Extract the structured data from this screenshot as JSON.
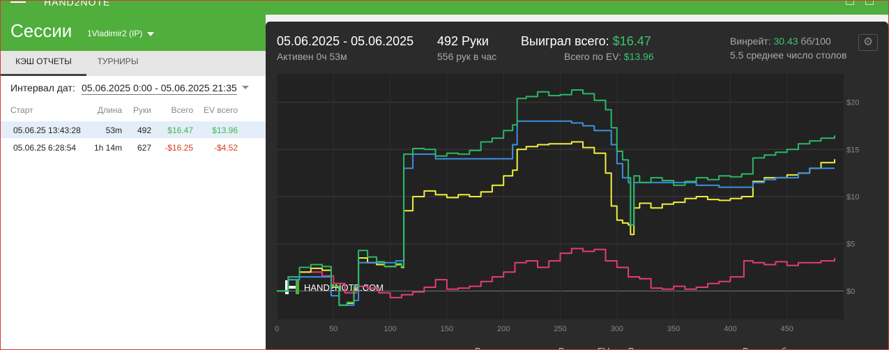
{
  "app": {
    "name": "HAND2NOTE"
  },
  "header": {
    "title": "Сессии",
    "player": "1Vladimir2 (IP)"
  },
  "tabs": [
    {
      "label": "КЭШ ОТЧЕТЫ",
      "active": true
    },
    {
      "label": "ТУРНИРЫ",
      "active": false
    }
  ],
  "filter": {
    "label": "Интервал дат:",
    "value": "05.06.2025 0:00 - 05.06.2025 21:35"
  },
  "table": {
    "headers": [
      "Старт",
      "Длина",
      "Руки",
      "Всего",
      "EV всего"
    ],
    "rows": [
      {
        "start": "05.06.25 13:43:28",
        "length": "53m",
        "hands": "492",
        "total": "$16.47",
        "ev_total": "$13.96",
        "selected": true
      },
      {
        "start": "05.06.25 6:28:54",
        "length": "1h 14m",
        "hands": "627",
        "total": "-$16.25",
        "ev_total": "-$4.52",
        "selected": false
      }
    ]
  },
  "summary": {
    "date_range": "05.06.2025 - 05.06.2025",
    "active": "Активен 0ч 53м",
    "hands": "492 Руки",
    "hands_per_hour": "556 рук в час",
    "won_label": "Выиграл всего:",
    "won_value": "$16.47",
    "ev_label": "Всего по EV:",
    "ev_value": "$13.96",
    "winrate_label": "Винрейт:",
    "winrate_value": "30.43",
    "winrate_unit": "бб/100",
    "avg_tables": "5.5 среднее число столов"
  },
  "watermark": "HAND2NOTE.COM",
  "colors": {
    "green": "#2bb866",
    "yellow": "#f2ee3d",
    "blue": "#3d8fe0",
    "pink": "#e23d7a",
    "positive": "#3cb84a",
    "negative": "#d6401f"
  },
  "chart_data": {
    "type": "line",
    "x_ticks": [
      0,
      50,
      100,
      150,
      200,
      250,
      300,
      350,
      400,
      450
    ],
    "y_ticks": [
      "$0",
      "$5",
      "$10",
      "$15",
      "$20"
    ],
    "xlim": [
      0,
      492
    ],
    "ylim": [
      -3,
      23
    ],
    "legend_position": "bottom-right",
    "series": [
      {
        "name": "Выиграл всего",
        "color": "#2bb866",
        "x": [
          0,
          10,
          20,
          30,
          40,
          48,
          55,
          62,
          68,
          72,
          80,
          88,
          95,
          105,
          110,
          112,
          120,
          130,
          140,
          150,
          160,
          170,
          180,
          190,
          200,
          208,
          212,
          220,
          230,
          240,
          250,
          260,
          270,
          280,
          290,
          295,
          300,
          305,
          310,
          312,
          315,
          320,
          330,
          340,
          350,
          360,
          370,
          380,
          390,
          400,
          410,
          420,
          430,
          440,
          450,
          460,
          470,
          480,
          492
        ],
        "y": [
          0,
          1.5,
          2.5,
          2.8,
          2.6,
          0.5,
          -1.5,
          -1.2,
          0.5,
          4.3,
          3.6,
          3.1,
          2.6,
          2.9,
          2.6,
          14.5,
          15.1,
          15.0,
          14.3,
          14.6,
          14.5,
          14.9,
          15.8,
          16.2,
          17.0,
          17.6,
          20.4,
          20.6,
          21.1,
          20.7,
          20.8,
          21.3,
          20.9,
          20.2,
          19.2,
          17.3,
          14.8,
          13.9,
          12.0,
          7.0,
          12.2,
          11.5,
          12.0,
          11.7,
          11.2,
          11.6,
          12.0,
          11.8,
          12.2,
          12.1,
          12.4,
          14.1,
          14.4,
          14.7,
          15.0,
          15.6,
          15.9,
          16.2,
          16.47
        ]
      },
      {
        "name": "Всего по EV",
        "color": "#f2ee3d",
        "x": [
          0,
          10,
          20,
          30,
          40,
          48,
          55,
          62,
          68,
          72,
          80,
          88,
          95,
          105,
          110,
          112,
          120,
          130,
          140,
          150,
          160,
          170,
          180,
          190,
          200,
          208,
          212,
          220,
          230,
          240,
          250,
          260,
          270,
          280,
          290,
          295,
          300,
          305,
          310,
          312,
          315,
          320,
          330,
          340,
          350,
          360,
          370,
          380,
          390,
          400,
          410,
          420,
          430,
          440,
          450,
          460,
          470,
          480,
          492
        ],
        "y": [
          0,
          1.2,
          2.0,
          2.4,
          2.2,
          0.4,
          -1.5,
          -1.3,
          0.2,
          3.5,
          3.0,
          2.8,
          2.6,
          2.8,
          2.5,
          8.5,
          10.0,
          10.6,
          10.2,
          9.9,
          10.2,
          10.0,
          10.5,
          11.2,
          12.2,
          12.8,
          15.0,
          15.3,
          15.5,
          15.6,
          15.6,
          15.8,
          15.2,
          14.6,
          12.5,
          9.0,
          7.5,
          7.2,
          7.0,
          6.0,
          8.8,
          9.3,
          8.8,
          9.2,
          9.4,
          9.8,
          10.0,
          9.7,
          9.6,
          9.8,
          10.0,
          11.6,
          12.0,
          12.0,
          12.3,
          12.5,
          13.0,
          13.6,
          13.96
        ]
      },
      {
        "name": "Выиграл на шоудауне",
        "color": "#3d8fe0",
        "x": [
          0,
          10,
          20,
          30,
          40,
          48,
          55,
          62,
          68,
          72,
          80,
          88,
          95,
          105,
          110,
          112,
          120,
          130,
          140,
          150,
          160,
          170,
          180,
          190,
          200,
          208,
          212,
          220,
          230,
          240,
          250,
          260,
          270,
          280,
          290,
          295,
          300,
          305,
          310,
          312,
          315,
          320,
          330,
          340,
          350,
          360,
          370,
          380,
          390,
          400,
          410,
          420,
          430,
          440,
          450,
          460,
          470,
          480,
          492
        ],
        "y": [
          0,
          1.2,
          1.5,
          1.5,
          1.5,
          -0.5,
          -1.5,
          -1.5,
          -1.0,
          3.0,
          3.0,
          3.0,
          3.0,
          3.2,
          3.2,
          13.0,
          14.5,
          14.5,
          14.0,
          14.0,
          14.0,
          14.0,
          14.0,
          14.0,
          14.0,
          15.5,
          18.0,
          18.0,
          18.0,
          18.0,
          18.0,
          17.8,
          17.5,
          17.0,
          17.0,
          15.5,
          13.5,
          12.0,
          11.5,
          7.0,
          11.5,
          11.5,
          11.5,
          11.5,
          11.5,
          11.5,
          11.2,
          11.2,
          11.0,
          11.0,
          11.0,
          11.5,
          11.8,
          12.0,
          12.0,
          12.5,
          13.0,
          13.0,
          13.0
        ]
      },
      {
        "name": "Выиграл без шоудауна",
        "color": "#e23d7a",
        "x": [
          0,
          10,
          20,
          30,
          40,
          50,
          60,
          70,
          80,
          90,
          100,
          110,
          120,
          130,
          140,
          150,
          160,
          170,
          180,
          190,
          200,
          210,
          220,
          230,
          240,
          250,
          260,
          270,
          280,
          290,
          300,
          310,
          320,
          330,
          340,
          350,
          360,
          370,
          380,
          390,
          400,
          410,
          412,
          420,
          430,
          440,
          450,
          460,
          470,
          480,
          492
        ],
        "y": [
          0,
          1.5,
          2.0,
          2.0,
          1.6,
          0.8,
          -0.2,
          0.5,
          0.3,
          -0.2,
          -0.7,
          -0.4,
          -0.1,
          0.4,
          1.2,
          0.2,
          0.3,
          0.5,
          1.0,
          1.5,
          2.0,
          3.0,
          3.2,
          2.5,
          3.2,
          4.0,
          4.5,
          4.2,
          4.4,
          3.2,
          2.5,
          1.5,
          1.3,
          0.3,
          0.2,
          0.5,
          0.2,
          0.4,
          0.8,
          1.0,
          1.5,
          1.5,
          3.2,
          3.0,
          2.8,
          3.1,
          2.7,
          3.0,
          3.0,
          3.2,
          3.5
        ]
      }
    ]
  }
}
